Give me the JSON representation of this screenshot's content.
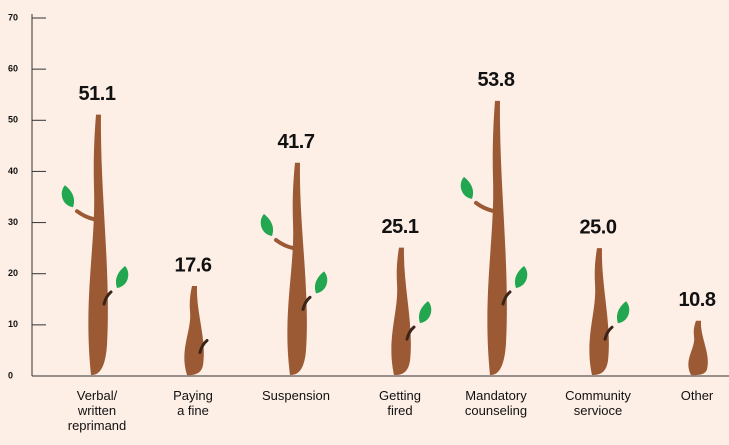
{
  "chart_data": {
    "type": "bar",
    "categories": [
      "Verbal/\nwritten\nreprimand",
      "Paying\na fine",
      "Suspension",
      "Getting\nfired",
      "Mandatory\ncounseling",
      "Community\nservioce",
      "Other"
    ],
    "values": [
      51.1,
      17.6,
      41.7,
      25.1,
      53.8,
      25.0,
      10.8
    ],
    "value_labels": [
      "51.1",
      "17.6",
      "41.7",
      "25.1",
      "53.8",
      "25.0",
      "10.8"
    ],
    "color": "#9c5a34",
    "leaf_color": "#22a650",
    "ylim": [
      0,
      70
    ],
    "yticks": [
      0,
      10,
      20,
      30,
      40,
      50,
      60,
      70
    ],
    "grid": false
  }
}
